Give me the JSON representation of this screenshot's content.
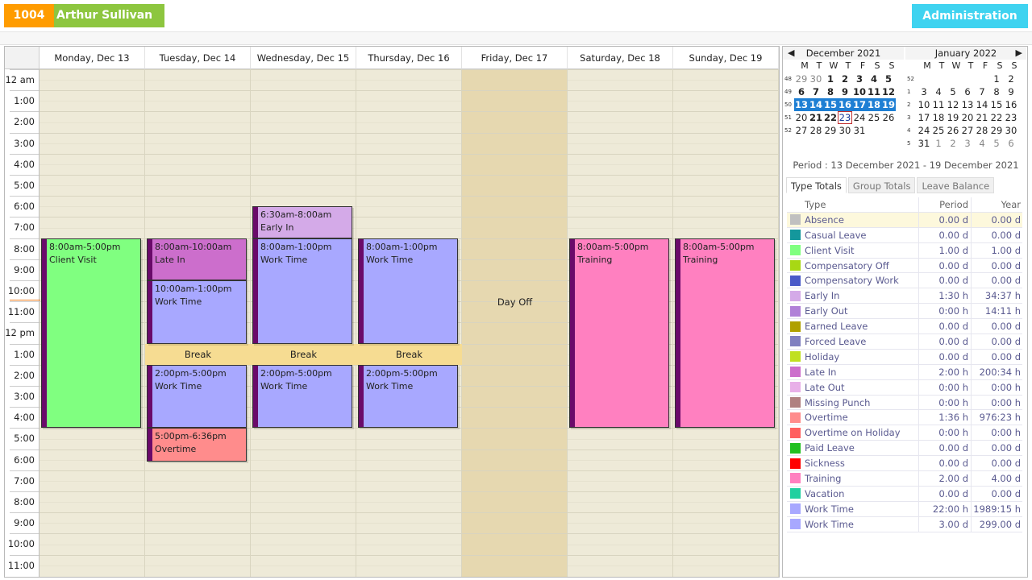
{
  "header": {
    "employee_id": "1004",
    "employee_name": "Arthur  Sullivan",
    "admin_button": "Administration"
  },
  "schedule": {
    "days": [
      "Monday, Dec 13",
      "Tuesday, Dec 14",
      "Wednesday, Dec 15",
      "Thursday, Dec 16",
      "Friday, Dec 17",
      "Saturday, Dec 18",
      "Sunday, Dec 19"
    ],
    "hours": [
      "12 am",
      "1:00",
      "2:00",
      "3:00",
      "4:00",
      "5:00",
      "6:00",
      "7:00",
      "8:00",
      "9:00",
      "10:00",
      "11:00",
      "12 pm",
      "1:00",
      "2:00",
      "3:00",
      "4:00",
      "5:00",
      "6:00",
      "7:00",
      "8:00",
      "9:00",
      "10:00",
      "11:00"
    ],
    "day_off": {
      "day": 4,
      "label": "Day Off"
    },
    "breaks": [
      {
        "day": 1,
        "label": "Break"
      },
      {
        "day": 2,
        "label": "Break"
      },
      {
        "day": 3,
        "label": "Break"
      }
    ],
    "events": [
      {
        "day": 0,
        "time": "8:00am-5:00pm",
        "label": "Client Visit",
        "color": "#80ff80"
      },
      {
        "day": 1,
        "time": "8:00am-10:00am",
        "label": "Late In",
        "color": "#cc6ecc"
      },
      {
        "day": 1,
        "time": "10:00am-1:00pm",
        "label": "Work Time",
        "color": "#a8a8ff"
      },
      {
        "day": 1,
        "time": "2:00pm-5:00pm",
        "label": "Work Time",
        "color": "#a8a8ff"
      },
      {
        "day": 1,
        "time": "5:00pm-6:36pm",
        "label": "Overtime",
        "color": "#ff8c8c"
      },
      {
        "day": 2,
        "time": "6:30am-8:00am",
        "label": "Early In",
        "color": "#d4aae8"
      },
      {
        "day": 2,
        "time": "8:00am-1:00pm",
        "label": "Work Time",
        "color": "#a8a8ff"
      },
      {
        "day": 2,
        "time": "2:00pm-5:00pm",
        "label": "Work Time",
        "color": "#a8a8ff"
      },
      {
        "day": 3,
        "time": "8:00am-1:00pm",
        "label": "Work Time",
        "color": "#a8a8ff"
      },
      {
        "day": 3,
        "time": "2:00pm-5:00pm",
        "label": "Work Time",
        "color": "#a8a8ff"
      },
      {
        "day": 5,
        "time": "8:00am-5:00pm",
        "label": "Training",
        "color": "#ff80c0"
      },
      {
        "day": 6,
        "time": "8:00am-5:00pm",
        "label": "Training",
        "color": "#ff80c0"
      }
    ]
  },
  "calendar": {
    "dow": [
      "M",
      "T",
      "W",
      "T",
      "F",
      "S",
      "S"
    ],
    "months": [
      {
        "title": "December 2021",
        "weeks": [
          {
            "n": "48",
            "days": [
              "29",
              "30",
              "1",
              "2",
              "3",
              "4",
              "5"
            ]
          },
          {
            "n": "49",
            "days": [
              "6",
              "7",
              "8",
              "9",
              "10",
              "11",
              "12"
            ]
          },
          {
            "n": "50",
            "days": [
              "13",
              "14",
              "15",
              "16",
              "17",
              "18",
              "19"
            ]
          },
          {
            "n": "51",
            "days": [
              "20",
              "21",
              "22",
              "23",
              "24",
              "25",
              "26"
            ]
          },
          {
            "n": "52",
            "days": [
              "27",
              "28",
              "29",
              "30",
              "31",
              "",
              ""
            ]
          }
        ]
      },
      {
        "title": "January 2022",
        "weeks": [
          {
            "n": "52",
            "days": [
              "",
              "",
              "",
              "",
              "",
              "1",
              "2"
            ]
          },
          {
            "n": "1",
            "days": [
              "3",
              "4",
              "5",
              "6",
              "7",
              "8",
              "9"
            ]
          },
          {
            "n": "2",
            "days": [
              "10",
              "11",
              "12",
              "13",
              "14",
              "15",
              "16"
            ]
          },
          {
            "n": "3",
            "days": [
              "17",
              "18",
              "19",
              "20",
              "21",
              "22",
              "23"
            ]
          },
          {
            "n": "4",
            "days": [
              "24",
              "25",
              "26",
              "27",
              "28",
              "29",
              "30"
            ]
          },
          {
            "n": "5",
            "days": [
              "31",
              "1",
              "2",
              "3",
              "4",
              "5",
              "6"
            ]
          }
        ]
      }
    ],
    "today": "23"
  },
  "summary": {
    "period": "Period : 13 December 2021 - 19 December 2021",
    "tabs": [
      "Type Totals",
      "Group Totals",
      "Leave Balance"
    ],
    "columns": [
      "Type",
      "Period",
      "Year"
    ],
    "rows": [
      {
        "type": "Absence",
        "period": "0.00 d",
        "year": "0.00 d",
        "color": "#c0c0c0"
      },
      {
        "type": "Casual Leave",
        "period": "0.00 d",
        "year": "0.00 d",
        "color": "#14979c"
      },
      {
        "type": "Client Visit",
        "period": "1.00 d",
        "year": "1.00 d",
        "color": "#80ff80"
      },
      {
        "type": "Compensatory Off",
        "period": "0.00 d",
        "year": "0.00 d",
        "color": "#a8d814"
      },
      {
        "type": "Compensatory Work",
        "period": "0.00 d",
        "year": "0.00 d",
        "color": "#4a5ac8"
      },
      {
        "type": "Early In",
        "period": "1:30 h",
        "year": "34:37 h",
        "color": "#d4aae8"
      },
      {
        "type": "Early Out",
        "period": "0:00 h",
        "year": "14:11 h",
        "color": "#b080d8"
      },
      {
        "type": "Earned Leave",
        "period": "0.00 d",
        "year": "0.00 d",
        "color": "#b0a000"
      },
      {
        "type": "Forced Leave",
        "period": "0.00 d",
        "year": "0.00 d",
        "color": "#8080c0"
      },
      {
        "type": "Holiday",
        "period": "0.00 d",
        "year": "0.00 d",
        "color": "#c0e020"
      },
      {
        "type": "Late In",
        "period": "2:00 h",
        "year": "200:34 h",
        "color": "#cc6ecc"
      },
      {
        "type": "Late Out",
        "period": "0:00 h",
        "year": "0:00 h",
        "color": "#e8b0e8"
      },
      {
        "type": "Missing Punch",
        "period": "0:00 h",
        "year": "0:00 h",
        "color": "#b08080"
      },
      {
        "type": "Overtime",
        "period": "1:36 h",
        "year": "976:23 h",
        "color": "#ff8c8c"
      },
      {
        "type": "Overtime on Holiday",
        "period": "0:00 h",
        "year": "0:00 h",
        "color": "#ff6060"
      },
      {
        "type": "Paid Leave",
        "period": "0.00 d",
        "year": "0.00 d",
        "color": "#20c020"
      },
      {
        "type": "Sickness",
        "period": "0.00 d",
        "year": "0.00 d",
        "color": "#ff0000"
      },
      {
        "type": "Training",
        "period": "2.00 d",
        "year": "4.00 d",
        "color": "#ff80c0"
      },
      {
        "type": "Vacation",
        "period": "0.00 d",
        "year": "0.00 d",
        "color": "#20d0a0"
      },
      {
        "type": "Work Time",
        "period": "22:00 h",
        "year": "1989:15 h",
        "color": "#a8a8ff"
      },
      {
        "type": "Work Time",
        "period": "3.00 d",
        "year": "299.00 d",
        "color": "#a8a8ff"
      }
    ]
  }
}
